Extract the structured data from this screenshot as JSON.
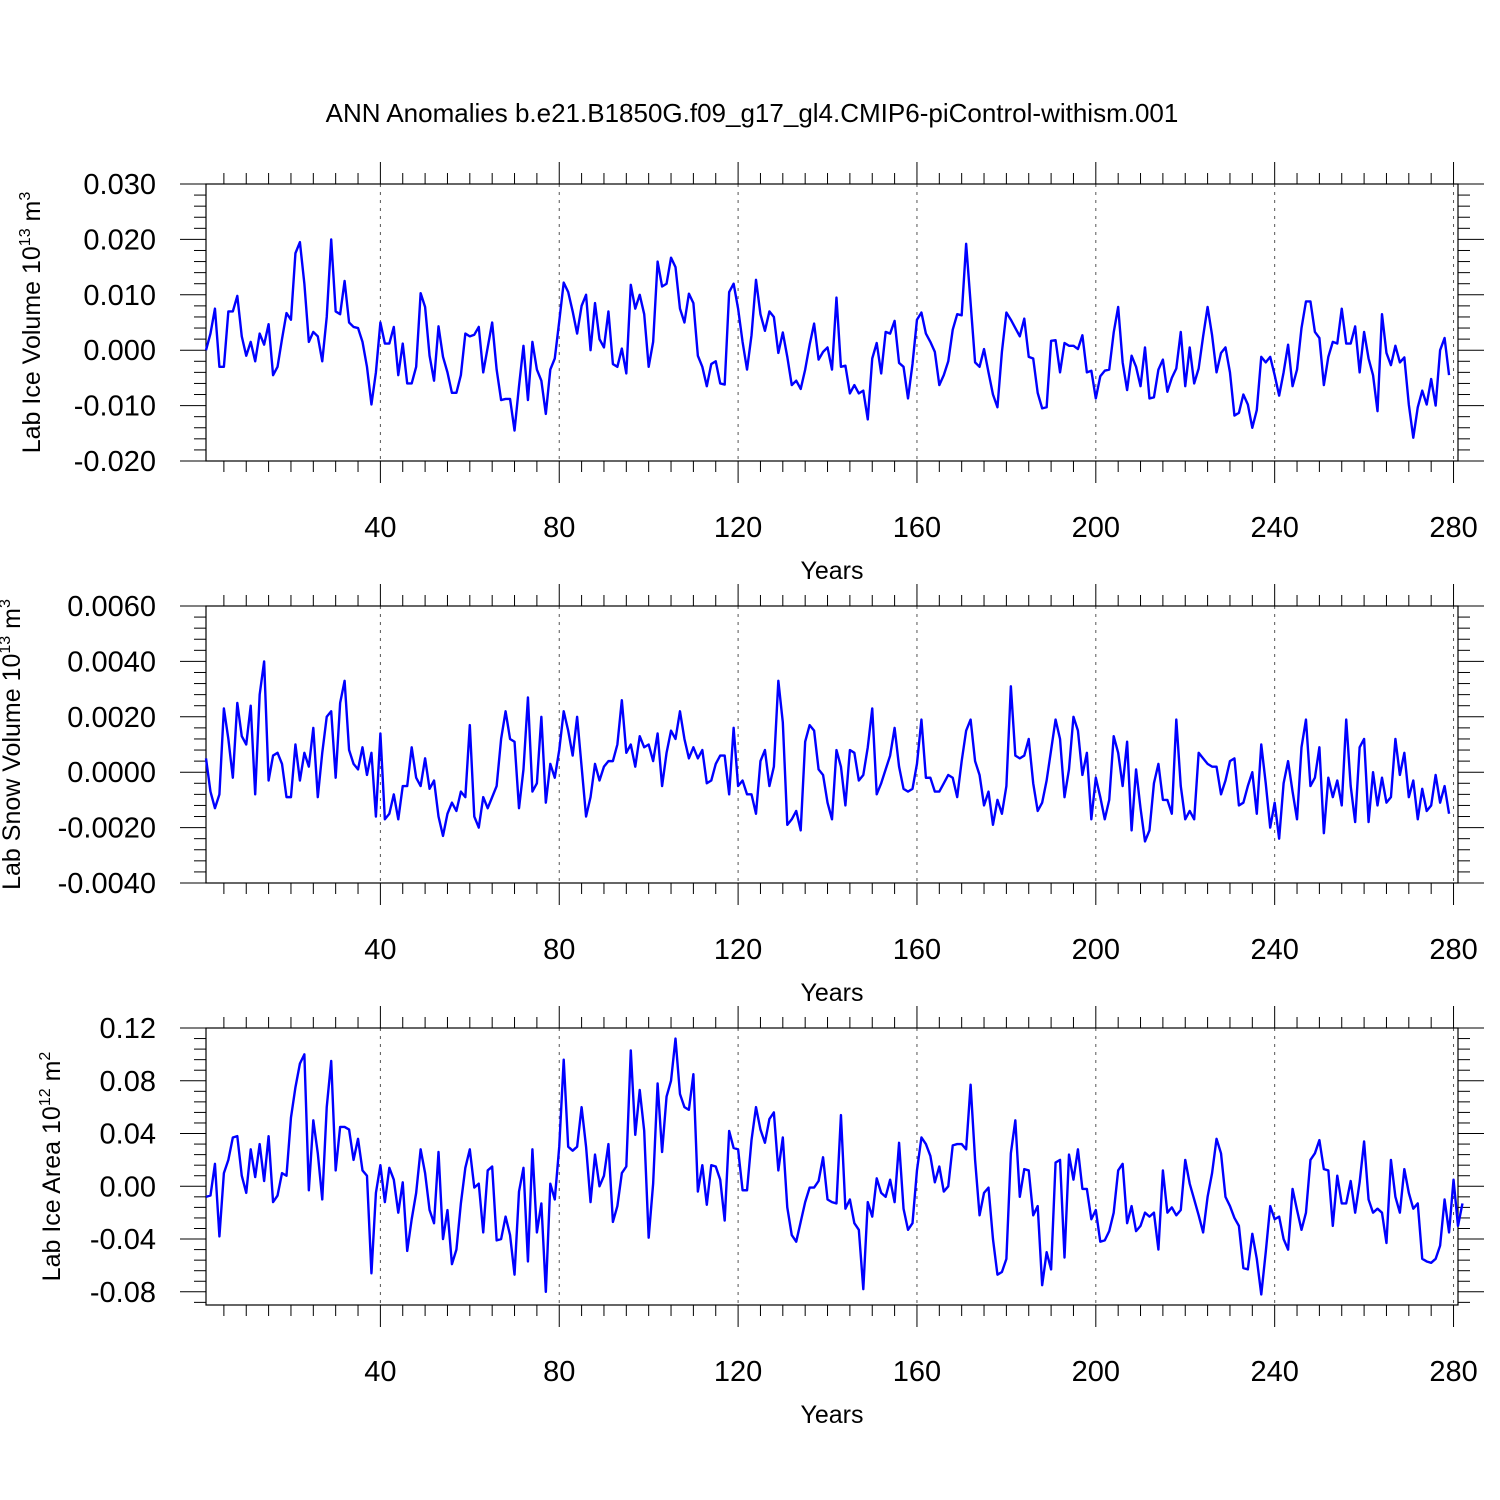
{
  "title": "ANN Anomalies b.e21.B1850G.f09_g17_gl4.CMIP6-piControl-withism.001",
  "colors": {
    "line": "#0000ff",
    "frame": "#000000",
    "grid": "#555555"
  },
  "chart_data": [
    {
      "type": "line",
      "ylabel": "Lab Ice Volume 10",
      "ylabel_exp": "13",
      "ylabel_unit": " m",
      "ylabel_unit_exp": "3",
      "xlabel": "Years",
      "xlim": [
        1,
        281
      ],
      "ylim": [
        -0.02,
        0.03
      ],
      "yticks": [
        -0.02,
        -0.01,
        0.0,
        0.01,
        0.02,
        0.03
      ],
      "ytick_labels": [
        "-0.020",
        "-0.010",
        "0.000",
        "0.010",
        "0.020",
        "0.030"
      ],
      "xticks": [
        40,
        80,
        120,
        160,
        200,
        240,
        280
      ],
      "xtick_labels": [
        "40",
        "80",
        "120",
        "160",
        "200",
        "240",
        "280"
      ],
      "grid_x": [
        40,
        80,
        120,
        160,
        200,
        240,
        280
      ],
      "x_start": 1,
      "values": [
        0.0,
        0.003,
        0.0075,
        -0.003,
        -0.003,
        0.007,
        0.007,
        0.0098,
        0.0025,
        -0.001,
        0.0015,
        -0.002,
        0.003,
        0.001,
        0.0047,
        -0.0045,
        -0.003,
        0.002,
        0.0067,
        0.0055,
        0.0175,
        0.0195,
        0.012,
        0.0015,
        0.0033,
        0.0025,
        -0.002,
        0.006,
        0.02,
        0.007,
        0.0065,
        0.0125,
        0.005,
        0.0042,
        0.004,
        0.0015,
        -0.003,
        -0.0098,
        -0.004,
        0.005,
        0.0012,
        0.0012,
        0.0042,
        -0.0045,
        0.0012,
        -0.006,
        -0.006,
        -0.003,
        0.0103,
        0.0078,
        -0.001,
        -0.0055,
        0.0043,
        -0.0012,
        -0.004,
        -0.0077,
        -0.0077,
        -0.0045,
        0.003,
        0.0025,
        0.0028,
        0.0042,
        -0.004,
        0.0005,
        0.005,
        -0.0035,
        -0.009,
        -0.0088,
        -0.0088,
        -0.0145,
        -0.0065,
        0.0008,
        -0.009,
        0.0015,
        -0.0035,
        -0.0055,
        -0.0115,
        -0.0035,
        -0.0015,
        0.0052,
        0.0122,
        0.0105,
        0.007,
        0.003,
        0.008,
        0.01,
        0.0,
        0.0085,
        0.002,
        0.0005,
        0.007,
        -0.0025,
        -0.003,
        0.0003,
        -0.0042,
        0.0118,
        0.0075,
        0.01,
        0.0065,
        -0.003,
        0.0015,
        0.016,
        0.0115,
        0.012,
        0.0167,
        0.015,
        0.0075,
        0.005,
        0.0102,
        0.0085,
        -0.001,
        -0.003,
        -0.0065,
        -0.0025,
        -0.002,
        -0.006,
        -0.0062,
        0.0105,
        0.012,
        0.0075,
        0.0015,
        -0.0035,
        0.0027,
        0.0127,
        0.0065,
        0.0035,
        0.007,
        0.006,
        -0.0005,
        0.0032,
        -0.0012,
        -0.0063,
        -0.0055,
        -0.007,
        -0.0035,
        0.001,
        0.0048,
        -0.0017,
        -0.0003,
        0.0005,
        -0.0035,
        0.0095,
        -0.003,
        -0.0028,
        -0.0078,
        -0.0063,
        -0.0078,
        -0.0073,
        -0.0125,
        -0.0015,
        0.0013,
        -0.0042,
        0.0033,
        0.003,
        0.0053,
        -0.0023,
        -0.003,
        -0.0087,
        -0.0025,
        0.0055,
        0.0068,
        0.003,
        0.0015,
        -0.0003,
        -0.0063,
        -0.0045,
        -0.002,
        0.0037,
        0.0065,
        0.0063,
        0.0192,
        0.0085,
        -0.0022,
        -0.003,
        0.0002,
        -0.004,
        -0.008,
        -0.0103,
        -0.0003,
        0.0068,
        0.0055,
        0.004,
        0.0025,
        0.0057,
        -0.0012,
        -0.0015,
        -0.0077,
        -0.0105,
        -0.0103,
        0.0017,
        0.0018,
        -0.004,
        0.0013,
        0.0008,
        0.0008,
        0.0002,
        0.0027,
        -0.004,
        -0.0037,
        -0.0087,
        -0.0047,
        -0.0037,
        -0.0035,
        0.0032,
        0.0078,
        -0.0022,
        -0.0072,
        -0.001,
        -0.003,
        -0.0065,
        0.0005,
        -0.0087,
        -0.0085,
        -0.0035,
        -0.0017,
        -0.0075,
        -0.005,
        -0.0033,
        0.0033,
        -0.0065,
        0.0005,
        -0.006,
        -0.0033,
        0.0025,
        0.0078,
        0.0027,
        -0.004,
        -0.0005,
        0.0005,
        -0.004,
        -0.0118,
        -0.0113,
        -0.008,
        -0.0098,
        -0.014,
        -0.0108,
        -0.0012,
        -0.0022,
        -0.0012,
        -0.0045,
        -0.0082,
        -0.004,
        0.001,
        -0.0065,
        -0.0035,
        0.004,
        0.0088,
        0.0088,
        0.0033,
        0.0022,
        -0.0063,
        -0.0012,
        0.0015,
        0.0012,
        0.0075,
        0.0012,
        0.0012,
        0.0043,
        -0.004,
        0.0033,
        -0.0015,
        -0.0045,
        -0.011,
        0.0065,
        -0.0005,
        -0.0027,
        0.0008,
        -0.0022,
        -0.0013,
        -0.0098,
        -0.0158,
        -0.0103,
        -0.0073,
        -0.0098,
        -0.0052,
        -0.01,
        0.0,
        0.0022,
        -0.0045
      ]
    },
    {
      "type": "line",
      "ylabel": "Lab Snow Volume 10",
      "ylabel_exp": "13",
      "ylabel_unit": " m",
      "ylabel_unit_exp": "3",
      "xlabel": "Years",
      "xlim": [
        1,
        281
      ],
      "ylim": [
        -0.004,
        0.006
      ],
      "yticks": [
        -0.004,
        -0.002,
        0.0,
        0.002,
        0.004,
        0.006
      ],
      "ytick_labels": [
        "-0.0040",
        "-0.0020",
        "0.0000",
        "0.0020",
        "0.0040",
        "0.0060"
      ],
      "xticks": [
        40,
        80,
        120,
        160,
        200,
        240,
        280
      ],
      "xtick_labels": [
        "40",
        "80",
        "120",
        "160",
        "200",
        "240",
        "280"
      ],
      "grid_x": [
        40,
        80,
        120,
        160,
        200,
        240,
        280
      ],
      "x_start": 1,
      "values": [
        0.0005,
        -0.0007,
        -0.0013,
        -0.0008,
        0.0023,
        0.0012,
        -0.0002,
        0.0025,
        0.0013,
        0.001,
        0.0024,
        -0.0008,
        0.0028,
        0.004,
        -0.0003,
        0.0006,
        0.0007,
        0.0003,
        -0.0009,
        -0.0009,
        0.001,
        -0.0003,
        0.0007,
        0.0002,
        0.0016,
        -0.0009,
        0.0007,
        0.002,
        0.0022,
        -0.0002,
        0.0025,
        0.0033,
        0.0008,
        0.0003,
        0.0001,
        0.0009,
        -0.0001,
        0.0007,
        -0.0016,
        0.0014,
        -0.0017,
        -0.0015,
        -0.0008,
        -0.0017,
        -0.0005,
        -0.0005,
        0.0009,
        -0.0002,
        -0.0005,
        0.0005,
        -0.0006,
        -0.0003,
        -0.0016,
        -0.0023,
        -0.0015,
        -0.0011,
        -0.0014,
        -0.0007,
        -0.0009,
        0.0017,
        -0.0016,
        -0.002,
        -0.0009,
        -0.0013,
        -0.0009,
        -0.0005,
        0.0012,
        0.0022,
        0.0012,
        0.0011,
        -0.0013,
        0.0001,
        0.0027,
        -0.0007,
        -0.0004,
        0.002,
        -0.0011,
        0.0003,
        -0.0002,
        0.0008,
        0.0022,
        0.0015,
        0.0006,
        0.002,
        0.0002,
        -0.0016,
        -0.0009,
        0.0003,
        -0.0003,
        0.0002,
        0.0004,
        0.0004,
        0.001,
        0.0026,
        0.0007,
        0.001,
        0.0002,
        0.0013,
        0.0009,
        0.001,
        0.0004,
        0.0014,
        -0.0005,
        0.0007,
        0.0015,
        0.0012,
        0.0022,
        0.0012,
        0.0005,
        0.0009,
        0.0005,
        0.0008,
        -0.0004,
        -0.0003,
        0.0003,
        0.0006,
        0.0006,
        -0.0008,
        0.0016,
        -0.0005,
        -0.0003,
        -0.0008,
        -0.0008,
        -0.0015,
        0.0004,
        0.0008,
        -0.0005,
        0.0002,
        0.0033,
        0.0018,
        -0.0019,
        -0.0017,
        -0.0014,
        -0.0021,
        0.0011,
        0.0017,
        0.0015,
        0.0001,
        -0.0001,
        -0.0011,
        -0.0017,
        0.0008,
        0.0002,
        -0.0012,
        0.0008,
        0.0007,
        -0.0003,
        -0.0001,
        0.0009,
        0.0023,
        -0.0008,
        -0.0004,
        0.0001,
        0.0006,
        0.0016,
        0.0002,
        -0.0006,
        -0.0007,
        -0.0006,
        0.0003,
        0.0019,
        -0.0002,
        -0.0002,
        -0.0007,
        -0.0007,
        -0.0004,
        -0.0001,
        -0.0002,
        -0.0009,
        0.0004,
        0.0015,
        0.0019,
        0.0004,
        -0.0001,
        -0.0012,
        -0.0007,
        -0.0019,
        -0.001,
        -0.0015,
        -0.0005,
        0.0031,
        0.0006,
        0.0005,
        0.0006,
        0.0012,
        -0.0004,
        -0.0014,
        -0.0011,
        -0.0003,
        0.0008,
        0.0019,
        0.0012,
        -0.0009,
        0.0001,
        0.002,
        0.0015,
        -0.0001,
        0.0007,
        -0.0017,
        -0.0002,
        -0.0009,
        -0.0017,
        -0.001,
        0.0013,
        0.0007,
        -0.0005,
        0.0011,
        -0.0021,
        0.0001,
        -0.0013,
        -0.0025,
        -0.0021,
        -0.0004,
        0.0003,
        -0.001,
        -0.001,
        -0.0015,
        0.0019,
        -0.0005,
        -0.0017,
        -0.0014,
        -0.0017,
        0.0007,
        0.0005,
        0.0003,
        0.0002,
        0.0002,
        -0.0008,
        -0.0003,
        0.0004,
        0.0005,
        -0.0012,
        -0.0011,
        -0.0005,
        0.0,
        -0.0015,
        0.001,
        -0.0004,
        -0.002,
        -0.0011,
        -0.0024,
        -0.0004,
        0.0004,
        -0.0007,
        -0.0017,
        0.0009,
        0.0019,
        -0.0005,
        -0.0002,
        0.0009,
        -0.0022,
        -0.0002,
        -0.0009,
        -0.0003,
        -0.0012,
        0.0019,
        -0.0005,
        -0.0018,
        0.0009,
        0.0012,
        -0.0018,
        0.0,
        -0.0012,
        -0.0002,
        -0.0011,
        -0.0009,
        0.0012,
        -0.0001,
        0.0007,
        -0.0009,
        -0.0003,
        -0.0017,
        -0.0006,
        -0.0014,
        -0.0012,
        -0.0001,
        -0.0011,
        -0.0005,
        -0.0015
      ]
    },
    {
      "type": "line",
      "ylabel": "Lab Ice Area 10",
      "ylabel_exp": "12",
      "ylabel_unit": " m",
      "ylabel_unit_exp": "2",
      "xlabel": "Years",
      "xlim": [
        1,
        281
      ],
      "ylim": [
        -0.09,
        0.12
      ],
      "yticks": [
        -0.08,
        -0.04,
        0.0,
        0.04,
        0.08,
        0.12
      ],
      "ytick_labels": [
        "-0.08",
        "-0.04",
        "0.00",
        "0.04",
        "0.08",
        "0.12"
      ],
      "xticks": [
        40,
        80,
        120,
        160,
        200,
        240,
        280
      ],
      "xtick_labels": [
        "40",
        "80",
        "120",
        "160",
        "200",
        "240",
        "280"
      ],
      "grid_x": [
        40,
        80,
        120,
        160,
        200,
        240,
        280
      ],
      "x_start": 1,
      "values": [
        -0.008,
        -0.007,
        0.017,
        -0.038,
        0.01,
        0.02,
        0.037,
        0.038,
        0.008,
        -0.005,
        0.028,
        0.007,
        0.032,
        0.004,
        0.038,
        -0.012,
        -0.007,
        0.01,
        0.008,
        0.052,
        0.075,
        0.093,
        0.1,
        -0.003,
        0.05,
        0.025,
        -0.01,
        0.06,
        0.095,
        0.012,
        0.045,
        0.045,
        0.043,
        0.02,
        0.036,
        0.012,
        0.008,
        -0.066,
        -0.005,
        0.016,
        -0.012,
        0.014,
        0.005,
        -0.02,
        0.003,
        -0.049,
        -0.025,
        -0.005,
        0.028,
        0.01,
        -0.018,
        -0.028,
        0.026,
        -0.04,
        -0.018,
        -0.059,
        -0.048,
        -0.013,
        0.014,
        0.028,
        -0.001,
        0.002,
        -0.035,
        0.012,
        0.015,
        -0.041,
        -0.04,
        -0.023,
        -0.037,
        -0.067,
        -0.004,
        0.014,
        -0.057,
        0.028,
        -0.035,
        -0.013,
        -0.08,
        0.002,
        -0.01,
        0.03,
        0.096,
        0.03,
        0.027,
        0.03,
        0.06,
        0.03,
        -0.012,
        0.024,
        0.0,
        0.008,
        0.032,
        -0.027,
        -0.015,
        0.01,
        0.015,
        0.103,
        0.039,
        0.073,
        0.042,
        -0.039,
        0.002,
        0.078,
        0.026,
        0.068,
        0.08,
        0.112,
        0.07,
        0.06,
        0.058,
        0.085,
        -0.004,
        0.016,
        -0.014,
        0.016,
        0.015,
        0.005,
        -0.026,
        0.042,
        0.029,
        0.028,
        -0.003,
        -0.003,
        0.035,
        0.06,
        0.043,
        0.033,
        0.051,
        0.056,
        0.012,
        0.037,
        -0.016,
        -0.037,
        -0.042,
        -0.027,
        -0.012,
        -0.001,
        -0.001,
        0.004,
        0.022,
        -0.01,
        -0.012,
        -0.013,
        0.054,
        -0.017,
        -0.01,
        -0.028,
        -0.033,
        -0.078,
        -0.012,
        -0.023,
        0.006,
        -0.005,
        -0.008,
        0.005,
        -0.012,
        0.033,
        -0.017,
        -0.033,
        -0.028,
        0.012,
        0.037,
        0.032,
        0.023,
        0.003,
        0.015,
        -0.004,
        0.0,
        0.031,
        0.032,
        0.032,
        0.028,
        0.077,
        0.02,
        -0.022,
        -0.005,
        -0.001,
        -0.04,
        -0.067,
        -0.065,
        -0.055,
        0.025,
        0.05,
        -0.008,
        0.013,
        0.012,
        -0.022,
        -0.015,
        -0.075,
        -0.05,
        -0.063,
        0.018,
        0.02,
        -0.054,
        0.024,
        0.005,
        0.028,
        -0.002,
        -0.002,
        -0.025,
        -0.018,
        -0.042,
        -0.041,
        -0.034,
        -0.02,
        0.012,
        0.017,
        -0.028,
        -0.015,
        -0.034,
        -0.03,
        -0.02,
        -0.023,
        -0.02,
        -0.048,
        0.012,
        -0.02,
        -0.016,
        -0.022,
        -0.018,
        0.02,
        0.002,
        -0.01,
        -0.022,
        -0.035,
        -0.008,
        0.01,
        0.036,
        0.025,
        -0.008,
        -0.015,
        -0.024,
        -0.03,
        -0.062,
        -0.063,
        -0.036,
        -0.055,
        -0.082,
        -0.05,
        -0.015,
        -0.025,
        -0.023,
        -0.04,
        -0.048,
        -0.002,
        -0.018,
        -0.033,
        -0.02,
        0.02,
        0.025,
        0.035,
        0.013,
        0.012,
        -0.03,
        0.008,
        -0.013,
        -0.013,
        0.004,
        -0.02,
        0.003,
        0.034,
        -0.01,
        -0.02,
        -0.017,
        -0.02,
        -0.043,
        0.02,
        -0.008,
        -0.02,
        0.013,
        -0.005,
        -0.017,
        -0.013,
        -0.055,
        -0.057,
        -0.058,
        -0.055,
        -0.045,
        -0.01,
        -0.035,
        0.005,
        -0.03,
        -0.013
      ]
    }
  ]
}
